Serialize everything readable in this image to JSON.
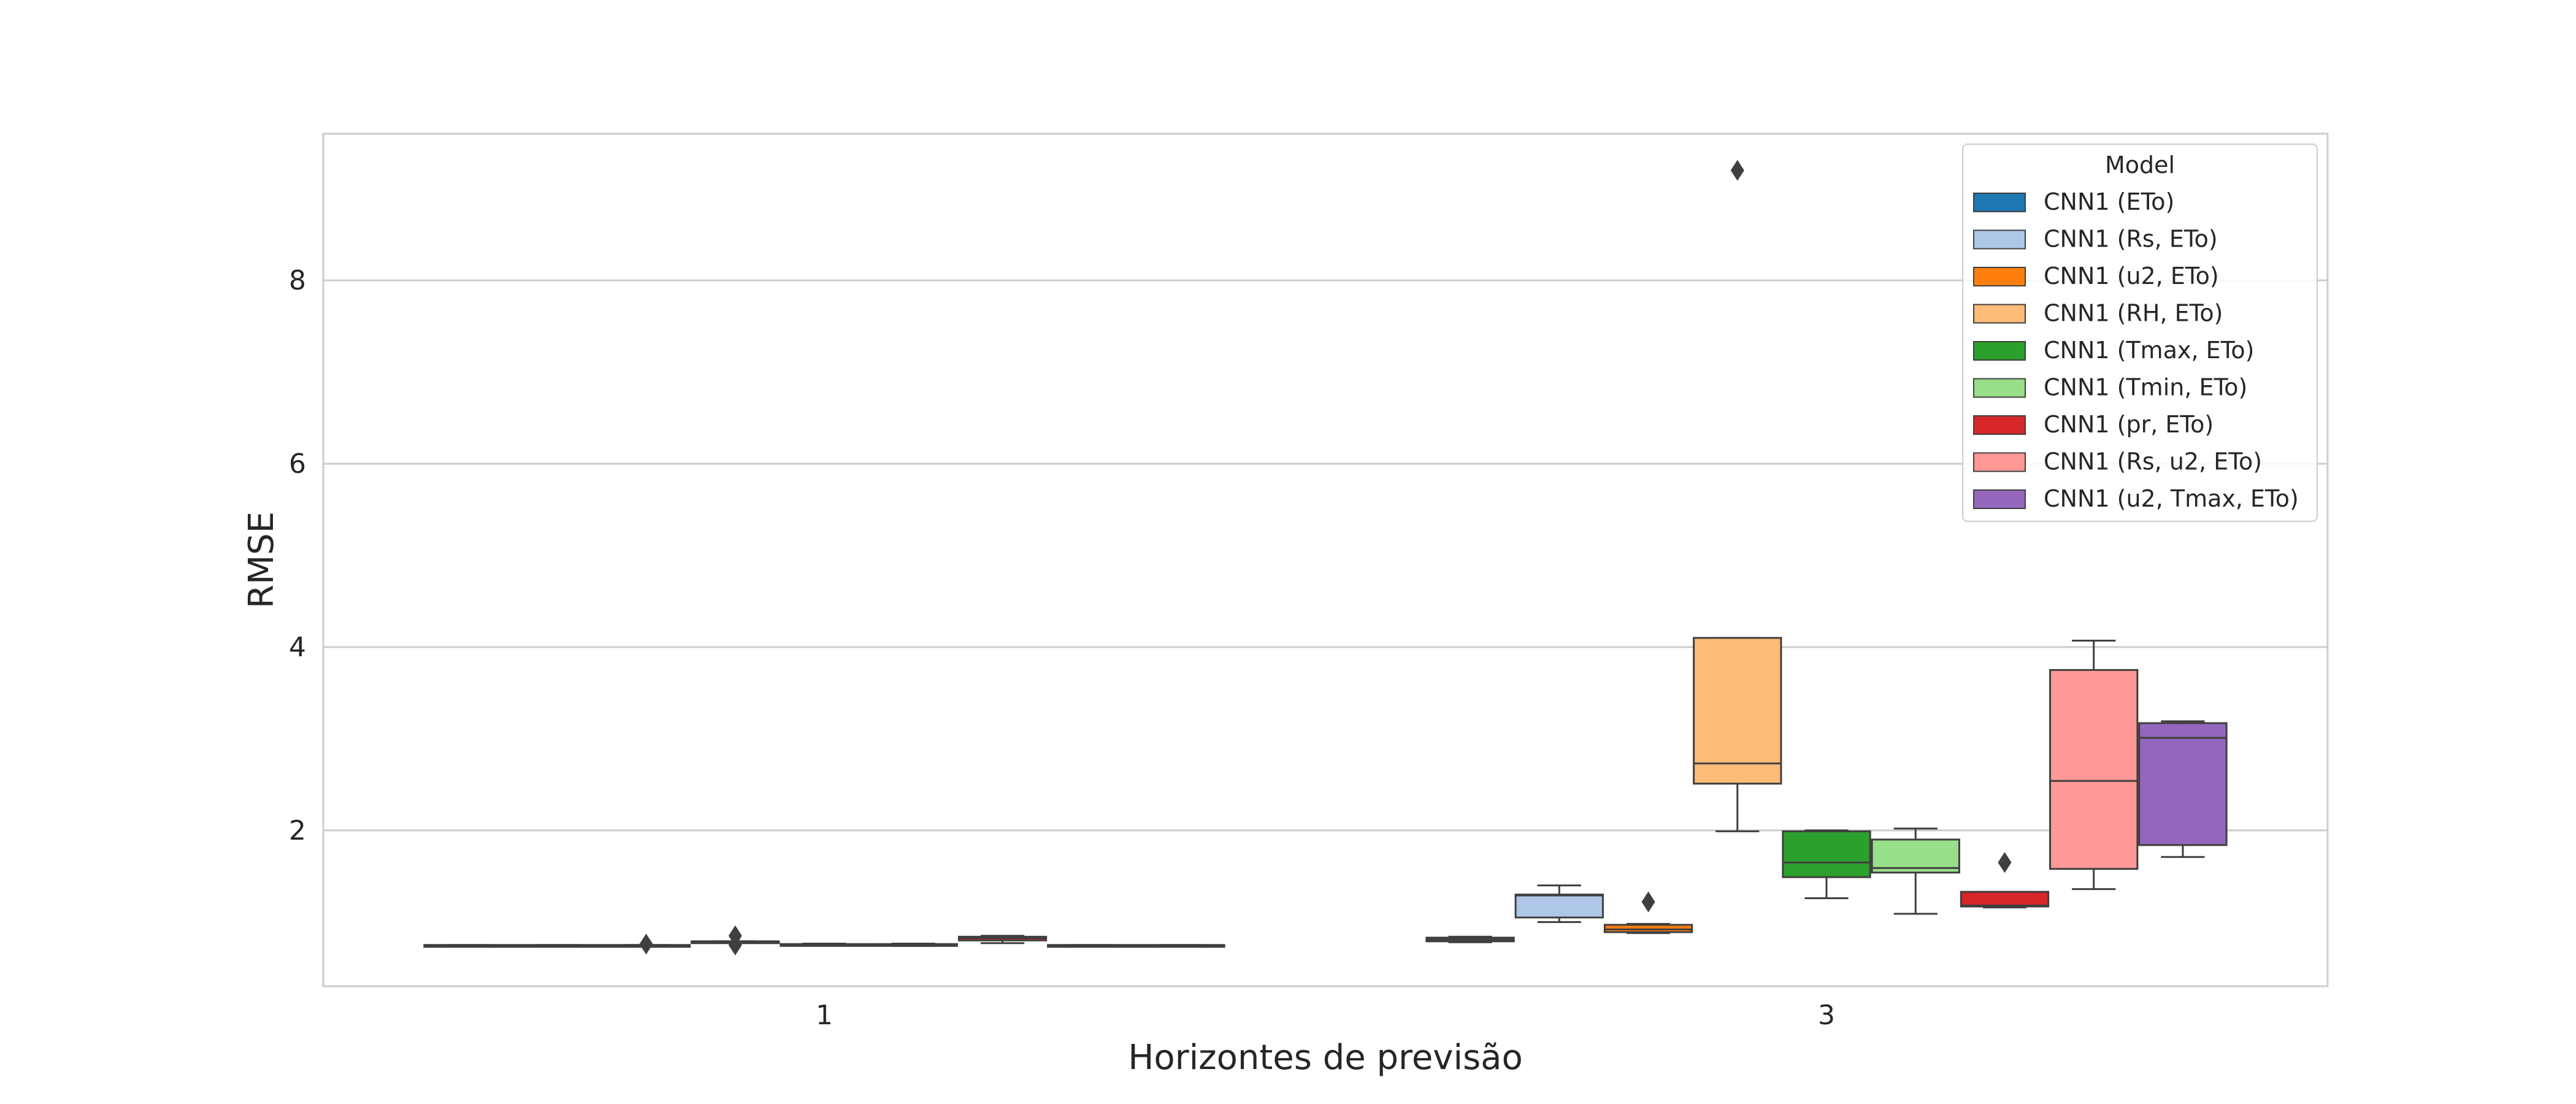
{
  "chart_data": {
    "type": "box",
    "title": "",
    "xlabel": "Horizontes de previsão",
    "ylabel": "RMSE",
    "categories": [
      "1",
      "3"
    ],
    "ylim": [
      0.3,
      9.6
    ],
    "yticks": [
      2,
      4,
      6,
      8
    ],
    "grid": "horizontal",
    "legend": {
      "title": "Model",
      "position": "top-right"
    },
    "series": [
      {
        "name": "CNN1 (ETo)",
        "color": "#1f77b4",
        "boxes": [
          {
            "category": "1",
            "whislo": 0.74,
            "q1": 0.74,
            "med": 0.745,
            "q3": 0.75,
            "whishi": 0.75,
            "fliers": []
          },
          {
            "category": "3",
            "whislo": 0.78,
            "q1": 0.79,
            "med": 0.81,
            "q3": 0.83,
            "whishi": 0.84,
            "fliers": []
          }
        ]
      },
      {
        "name": "CNN1 (Rs, ETo)",
        "color": "#aec7e8",
        "boxes": [
          {
            "category": "1",
            "whislo": 0.74,
            "q1": 0.74,
            "med": 0.745,
            "q3": 0.75,
            "whishi": 0.75,
            "fliers": []
          },
          {
            "category": "3",
            "whislo": 1.0,
            "q1": 1.05,
            "med": 1.29,
            "q3": 1.3,
            "whishi": 1.4,
            "fliers": []
          }
        ]
      },
      {
        "name": "CNN1 (u2, ETo)",
        "color": "#ff7f0e",
        "boxes": [
          {
            "category": "1",
            "whislo": 0.74,
            "q1": 0.74,
            "med": 0.745,
            "q3": 0.75,
            "whishi": 0.75,
            "fliers": [
              0.76
            ]
          },
          {
            "category": "3",
            "whislo": 0.88,
            "q1": 0.89,
            "med": 0.92,
            "q3": 0.97,
            "whishi": 0.98,
            "fliers": [
              1.22
            ]
          }
        ]
      },
      {
        "name": "CNN1 (RH, ETo)",
        "color": "#ffbb78",
        "boxes": [
          {
            "category": "1",
            "whislo": 0.78,
            "q1": 0.78,
            "med": 0.785,
            "q3": 0.79,
            "whishi": 0.79,
            "fliers": [
              0.75,
              0.85
            ]
          },
          {
            "category": "3",
            "whislo": 1.99,
            "q1": 2.51,
            "med": 2.73,
            "q3": 4.1,
            "whishi": 4.1,
            "fliers": [
              9.2
            ]
          }
        ]
      },
      {
        "name": "CNN1 (Tmax, ETo)",
        "color": "#2ca02c",
        "boxes": [
          {
            "category": "1",
            "whislo": 0.745,
            "q1": 0.75,
            "med": 0.755,
            "q3": 0.76,
            "whishi": 0.765,
            "fliers": []
          },
          {
            "category": "3",
            "whislo": 1.26,
            "q1": 1.49,
            "med": 1.65,
            "q3": 1.99,
            "whishi": 2.0,
            "fliers": []
          }
        ]
      },
      {
        "name": "CNN1 (Tmin, ETo)",
        "color": "#98df8a",
        "boxes": [
          {
            "category": "1",
            "whislo": 0.74,
            "q1": 0.745,
            "med": 0.75,
            "q3": 0.76,
            "whishi": 0.765,
            "fliers": []
          },
          {
            "category": "3",
            "whislo": 1.09,
            "q1": 1.54,
            "med": 1.59,
            "q3": 1.9,
            "whishi": 2.02,
            "fliers": []
          }
        ]
      },
      {
        "name": "CNN1 (pr, ETo)",
        "color": "#d62728",
        "boxes": [
          {
            "category": "1",
            "whislo": 0.77,
            "q1": 0.8,
            "med": 0.825,
            "q3": 0.84,
            "whishi": 0.85,
            "fliers": []
          },
          {
            "category": "3",
            "whislo": 1.16,
            "q1": 1.17,
            "med": 1.18,
            "q3": 1.33,
            "whishi": 1.33,
            "fliers": [
              1.65
            ]
          }
        ]
      },
      {
        "name": "CNN1 (Rs, u2, ETo)",
        "color": "#ff9896",
        "boxes": [
          {
            "category": "1",
            "whislo": 0.74,
            "q1": 0.74,
            "med": 0.745,
            "q3": 0.75,
            "whishi": 0.75,
            "fliers": []
          },
          {
            "category": "3",
            "whislo": 1.36,
            "q1": 1.58,
            "med": 2.54,
            "q3": 3.75,
            "whishi": 4.07,
            "fliers": []
          }
        ]
      },
      {
        "name": "CNN1 (u2, Tmax, ETo)",
        "color": "#9467bd",
        "boxes": [
          {
            "category": "1",
            "whislo": 0.74,
            "q1": 0.74,
            "med": 0.745,
            "q3": 0.75,
            "whishi": 0.75,
            "fliers": []
          },
          {
            "category": "3",
            "whislo": 1.71,
            "q1": 1.84,
            "med": 3.01,
            "q3": 3.17,
            "whishi": 3.19,
            "fliers": []
          }
        ]
      }
    ]
  }
}
